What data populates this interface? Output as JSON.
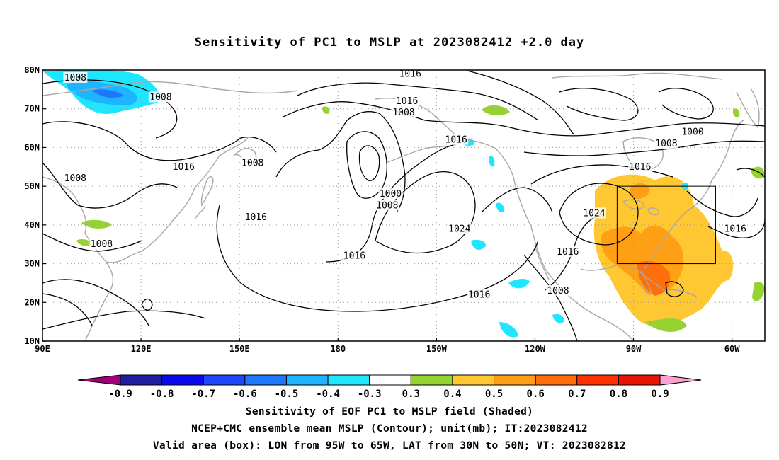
{
  "title": "Sensitivity of PC1 to MSLP at 2023082412 +2.0 day",
  "map": {
    "lon_range": [
      "90E",
      "50W"
    ],
    "lat_range": [
      10,
      80
    ],
    "lon_ticks": [
      "90E",
      "120E",
      "150E",
      "180",
      "150W",
      "120W",
      "90W",
      "60W"
    ],
    "lat_ticks": [
      "10N",
      "20N",
      "30N",
      "40N",
      "50N",
      "60N",
      "70N",
      "80N"
    ],
    "grid": "dotted",
    "contour_labels": [
      {
        "text": "1008",
        "lon": 100,
        "lat": 78
      },
      {
        "text": "1008",
        "lon": 126,
        "lat": 73
      },
      {
        "text": "1008",
        "lon": 100,
        "lat": 52
      },
      {
        "text": "1016",
        "lon": 133,
        "lat": 55
      },
      {
        "text": "1008",
        "lon": 108,
        "lat": 35
      },
      {
        "text": "1008",
        "lon": 154,
        "lat": 56
      },
      {
        "text": "1016",
        "lon": 155,
        "lat": 42
      },
      {
        "text": "1016",
        "lon": -158,
        "lat": 79
      },
      {
        "text": "1016",
        "lon": -159,
        "lat": 72
      },
      {
        "text": "1008",
        "lon": -160,
        "lat": 69
      },
      {
        "text": "1000",
        "lon": -164,
        "lat": 48
      },
      {
        "text": "1008",
        "lon": -165,
        "lat": 45
      },
      {
        "text": "1016",
        "lon": -144,
        "lat": 62
      },
      {
        "text": "1024",
        "lon": -143,
        "lat": 39
      },
      {
        "text": "1016",
        "lon": -175,
        "lat": 32
      },
      {
        "text": "1016",
        "lon": -137,
        "lat": 22
      },
      {
        "text": "1016",
        "lon": -88,
        "lat": 55
      },
      {
        "text": "1008",
        "lon": -80,
        "lat": 61
      },
      {
        "text": "1000",
        "lon": -72,
        "lat": 64
      },
      {
        "text": "1024",
        "lon": -102,
        "lat": 43
      },
      {
        "text": "1016",
        "lon": -110,
        "lat": 33
      },
      {
        "text": "1008",
        "lon": -113,
        "lat": 23
      },
      {
        "text": "1016",
        "lon": -59,
        "lat": 39
      }
    ],
    "valid_box": {
      "lon_w": -95,
      "lon_e": -65,
      "lat_s": 30,
      "lat_n": 50
    },
    "colors": {
      "coast": "#a8a8a8",
      "contour": "#000000",
      "box": "#000000"
    }
  },
  "colorbar": {
    "labels": [
      "-0.9",
      "-0.8",
      "-0.7",
      "-0.6",
      "-0.5",
      "-0.4",
      "-0.3",
      "0.3",
      "0.4",
      "0.5",
      "0.6",
      "0.7",
      "0.8",
      "0.9"
    ],
    "colors": [
      "#a0007a",
      "#1e1ea0",
      "#0a0aee",
      "#1e46ff",
      "#1e78ff",
      "#1eb4ff",
      "#1ee6ff",
      "#ffffff",
      "#96d232",
      "#ffc832",
      "#ffa014",
      "#ff6e0a",
      "#ff3200",
      "#e61400",
      "#ffa0d2"
    ]
  },
  "caption": {
    "line1": "Sensitivity of EOF PC1 to MSLP field (Shaded)",
    "line2": "NCEP+CMC ensemble mean MSLP (Contour); unit(mb); IT:2023082412",
    "line3": "Valid area (box): LON from 95W to 65W, LAT from 30N to 50N; VT: 2023082812"
  }
}
